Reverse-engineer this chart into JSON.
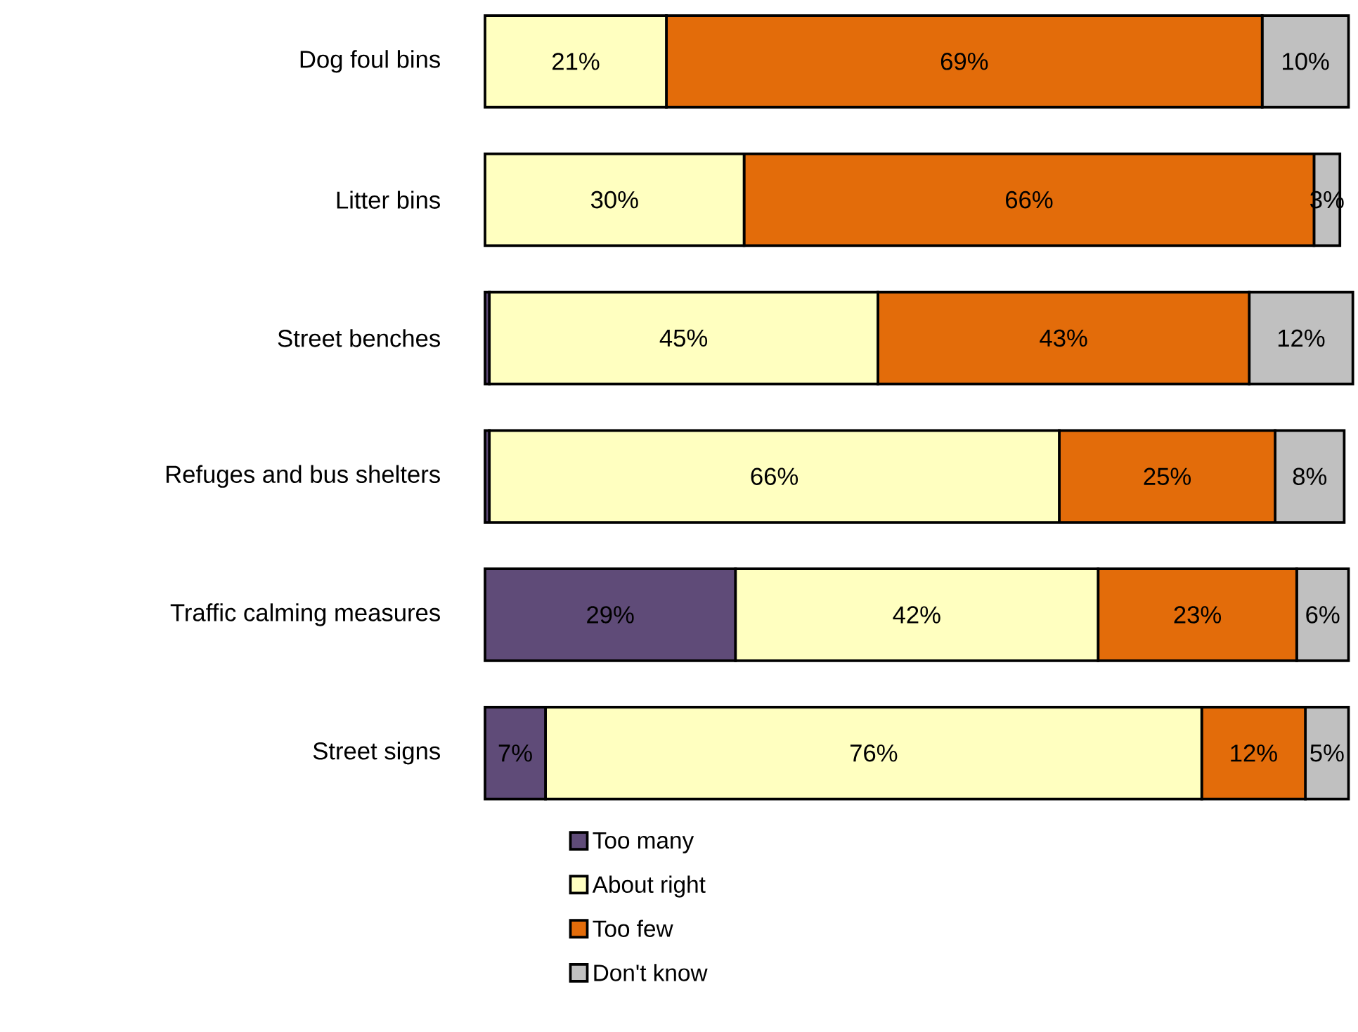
{
  "chart_data": {
    "type": "bar",
    "orientation": "horizontal",
    "stacked": true,
    "legend": "bottom",
    "categories": [
      "Dog foul bins",
      "Litter bins",
      "Street benches",
      "Refuges and bus shelters",
      "Traffic calming measures",
      "Street signs"
    ],
    "series": [
      {
        "name": "Too many",
        "color": "#5f4b78",
        "values": [
          0,
          0,
          0.5,
          0.5,
          29,
          7
        ],
        "value_labels": [
          null,
          null,
          null,
          null,
          "29%",
          "7%"
        ]
      },
      {
        "name": "About right",
        "color": "#ffffc0",
        "values": [
          21,
          30,
          45,
          66,
          42,
          76
        ],
        "value_labels": [
          "21%",
          "30%",
          "45%",
          "66%",
          "42%",
          "76%"
        ]
      },
      {
        "name": "Too few",
        "color": "#e36c0a",
        "values": [
          69,
          66,
          43,
          25,
          23,
          12
        ],
        "value_labels": [
          "69%",
          "66%",
          "43%",
          "25%",
          "23%",
          "12%"
        ]
      },
      {
        "name": "Don't know",
        "color": "#c0c0c0",
        "values": [
          10,
          3,
          12,
          8,
          6,
          5
        ],
        "value_labels": [
          "10%",
          "3%",
          "12%",
          "8%",
          "6%",
          "5%"
        ]
      }
    ]
  }
}
